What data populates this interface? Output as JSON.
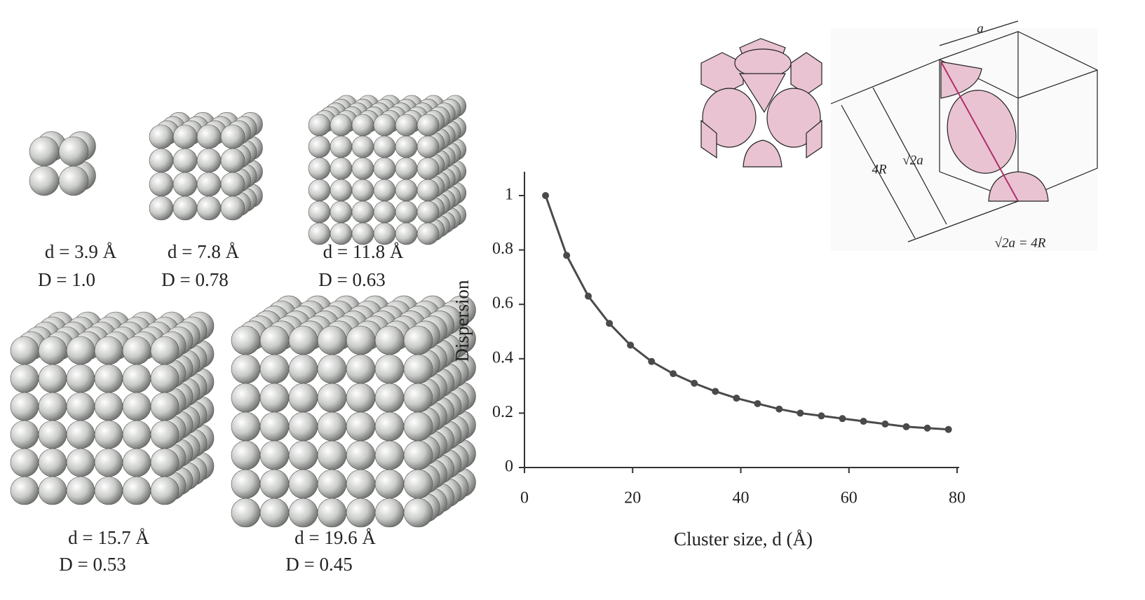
{
  "chart_data": {
    "type": "line",
    "x_label": "Cluster size, d (Å)",
    "y_label": "Dispersion",
    "x": [
      3.9,
      7.8,
      11.8,
      15.7,
      19.6,
      23.5,
      27.5,
      31.4,
      35.3,
      39.2,
      43.1,
      47.1,
      51.0,
      54.9,
      58.8,
      62.7,
      66.7,
      70.6,
      74.5,
      78.4
    ],
    "values": [
      1.0,
      0.78,
      0.63,
      0.53,
      0.45,
      0.39,
      0.345,
      0.31,
      0.28,
      0.255,
      0.235,
      0.215,
      0.2,
      0.19,
      0.18,
      0.17,
      0.16,
      0.15,
      0.145,
      0.14
    ],
    "color": "#4a4a4a",
    "xlim": [
      0,
      80
    ],
    "xticks": [
      0,
      20,
      40,
      60,
      80
    ],
    "ylim": [
      0,
      1
    ],
    "yticks": [
      0,
      0.2,
      0.4,
      0.6,
      0.8,
      1
    ]
  },
  "clusters": [
    {
      "size": "d = 3.9 Å",
      "dispersion": "D = 1.0"
    },
    {
      "size": "d = 7.8 Å",
      "dispersion": "D = 0.78"
    },
    {
      "size": "d = 11.8 Å",
      "dispersion": "D = 0.63"
    },
    {
      "size": "d = 15.7 Å",
      "dispersion": "D = 0.53"
    },
    {
      "size": "d = 19.6 Å",
      "dispersion": "D = 0.45"
    }
  ],
  "diagram": {
    "edge": "a",
    "radius": "4R",
    "diagonal": "√2a",
    "relation": "√2a = 4R"
  }
}
